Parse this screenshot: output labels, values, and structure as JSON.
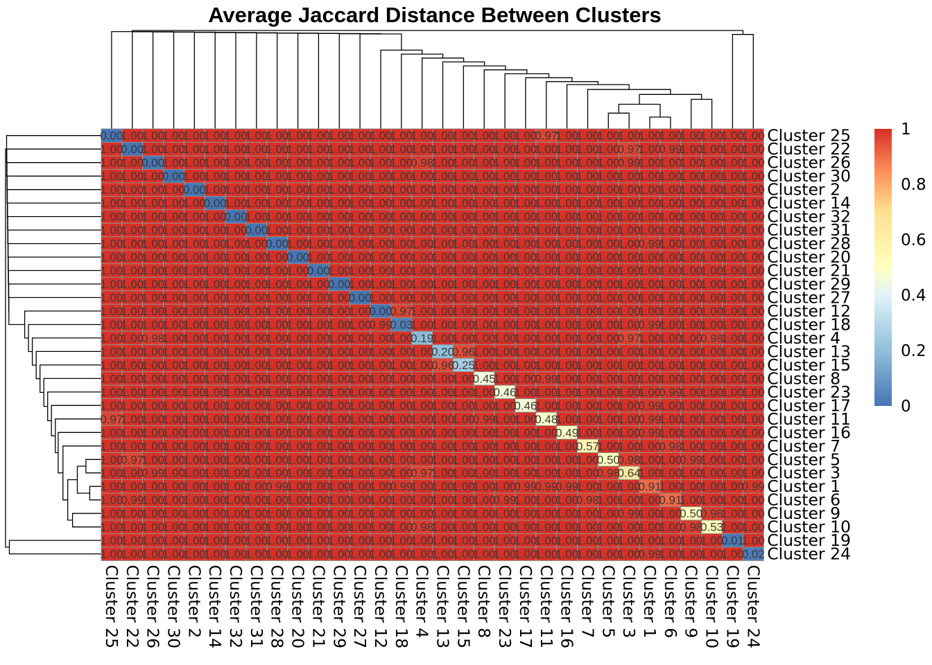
{
  "chart_data": {
    "type": "heatmap",
    "title": "Average Jaccard Distance Between Clusters",
    "labels": [
      "Cluster 25",
      "Cluster 22",
      "Cluster 26",
      "Cluster 30",
      "Cluster 2",
      "Cluster 14",
      "Cluster 32",
      "Cluster 31",
      "Cluster 28",
      "Cluster 20",
      "Cluster 21",
      "Cluster 29",
      "Cluster 27",
      "Cluster 12",
      "Cluster 18",
      "Cluster 4",
      "Cluster 13",
      "Cluster 15",
      "Cluster 8",
      "Cluster 23",
      "Cluster 17",
      "Cluster 11",
      "Cluster 16",
      "Cluster 7",
      "Cluster 5",
      "Cluster 3",
      "Cluster 1",
      "Cluster 6",
      "Cluster 9",
      "Cluster 10",
      "Cluster 19",
      "Cluster 24"
    ],
    "default_value": 1.0,
    "diagonal": [
      0.0,
      0.0,
      0.0,
      0.0,
      0.0,
      0.0,
      0.0,
      0.0,
      0.0,
      0.0,
      0.0,
      0.0,
      0.0,
      0.0,
      0.03,
      0.19,
      0.2,
      0.25,
      0.45,
      0.46,
      0.46,
      0.48,
      0.49,
      0.57,
      0.5,
      0.64,
      0.91,
      0.91,
      0.5,
      0.53,
      0.01,
      0.02
    ],
    "off_diagonal": [
      {
        "row": 0,
        "col": 21,
        "value": 0.97
      },
      {
        "row": 1,
        "col": 25,
        "value": 0.97
      },
      {
        "row": 1,
        "col": 27,
        "value": 0.99
      },
      {
        "row": 2,
        "col": 15,
        "value": 0.98
      },
      {
        "row": 2,
        "col": 25,
        "value": 0.99
      },
      {
        "row": 8,
        "col": 26,
        "value": 0.99
      },
      {
        "row": 13,
        "col": 14,
        "value": 0.97
      },
      {
        "row": 14,
        "col": 13,
        "value": 0.99
      },
      {
        "row": 14,
        "col": 26,
        "value": 0.99
      },
      {
        "row": 15,
        "col": 2,
        "value": 0.98
      },
      {
        "row": 15,
        "col": 25,
        "value": 0.97
      },
      {
        "row": 15,
        "col": 29,
        "value": 0.98
      },
      {
        "row": 16,
        "col": 17,
        "value": 0.96
      },
      {
        "row": 17,
        "col": 16,
        "value": 0.96
      },
      {
        "row": 18,
        "col": 21,
        "value": 0.99
      },
      {
        "row": 19,
        "col": 27,
        "value": 0.99
      },
      {
        "row": 20,
        "col": 26,
        "value": 0.99
      },
      {
        "row": 21,
        "col": 0,
        "value": 0.97
      },
      {
        "row": 21,
        "col": 18,
        "value": 0.99
      },
      {
        "row": 21,
        "col": 26,
        "value": 0.99
      },
      {
        "row": 22,
        "col": 26,
        "value": 0.99
      },
      {
        "row": 23,
        "col": 27,
        "value": 0.98
      },
      {
        "row": 24,
        "col": 1,
        "value": 0.97
      },
      {
        "row": 24,
        "col": 25,
        "value": 0.98
      },
      {
        "row": 24,
        "col": 28,
        "value": 0.99
      },
      {
        "row": 25,
        "col": 2,
        "value": 0.99
      },
      {
        "row": 25,
        "col": 15,
        "value": 0.97
      },
      {
        "row": 25,
        "col": 24,
        "value": 0.98
      },
      {
        "row": 26,
        "col": 8,
        "value": 0.99
      },
      {
        "row": 26,
        "col": 14,
        "value": 0.99
      },
      {
        "row": 26,
        "col": 20,
        "value": 0.99
      },
      {
        "row": 26,
        "col": 21,
        "value": 0.99
      },
      {
        "row": 26,
        "col": 22,
        "value": 0.99
      },
      {
        "row": 26,
        "col": 31,
        "value": 0.99
      },
      {
        "row": 27,
        "col": 1,
        "value": 0.99
      },
      {
        "row": 27,
        "col": 19,
        "value": 0.99
      },
      {
        "row": 27,
        "col": 23,
        "value": 0.98
      },
      {
        "row": 28,
        "col": 25,
        "value": 0.99
      },
      {
        "row": 28,
        "col": 29,
        "value": 0.98
      },
      {
        "row": 29,
        "col": 15,
        "value": 0.98
      },
      {
        "row": 29,
        "col": 28,
        "value": 0.98
      },
      {
        "row": 31,
        "col": 26,
        "value": 0.99
      }
    ],
    "color_scale": {
      "stops": [
        {
          "value": 0,
          "color": "#4575b4"
        },
        {
          "value": 0.2,
          "color": "#91bfdb"
        },
        {
          "value": 0.4,
          "color": "#e0f3f8"
        },
        {
          "value": 0.5,
          "color": "#ffffbf"
        },
        {
          "value": 0.7,
          "color": "#fee090"
        },
        {
          "value": 0.85,
          "color": "#fc8d59"
        },
        {
          "value": 1,
          "color": "#d73027"
        }
      ],
      "legend_ticks": [
        "0",
        "0.2",
        "0.4",
        "0.6",
        "0.8",
        "1"
      ]
    },
    "grid_color": "#909090",
    "legend_position": "right",
    "row_dendrogram": true,
    "col_dendrogram": true
  }
}
